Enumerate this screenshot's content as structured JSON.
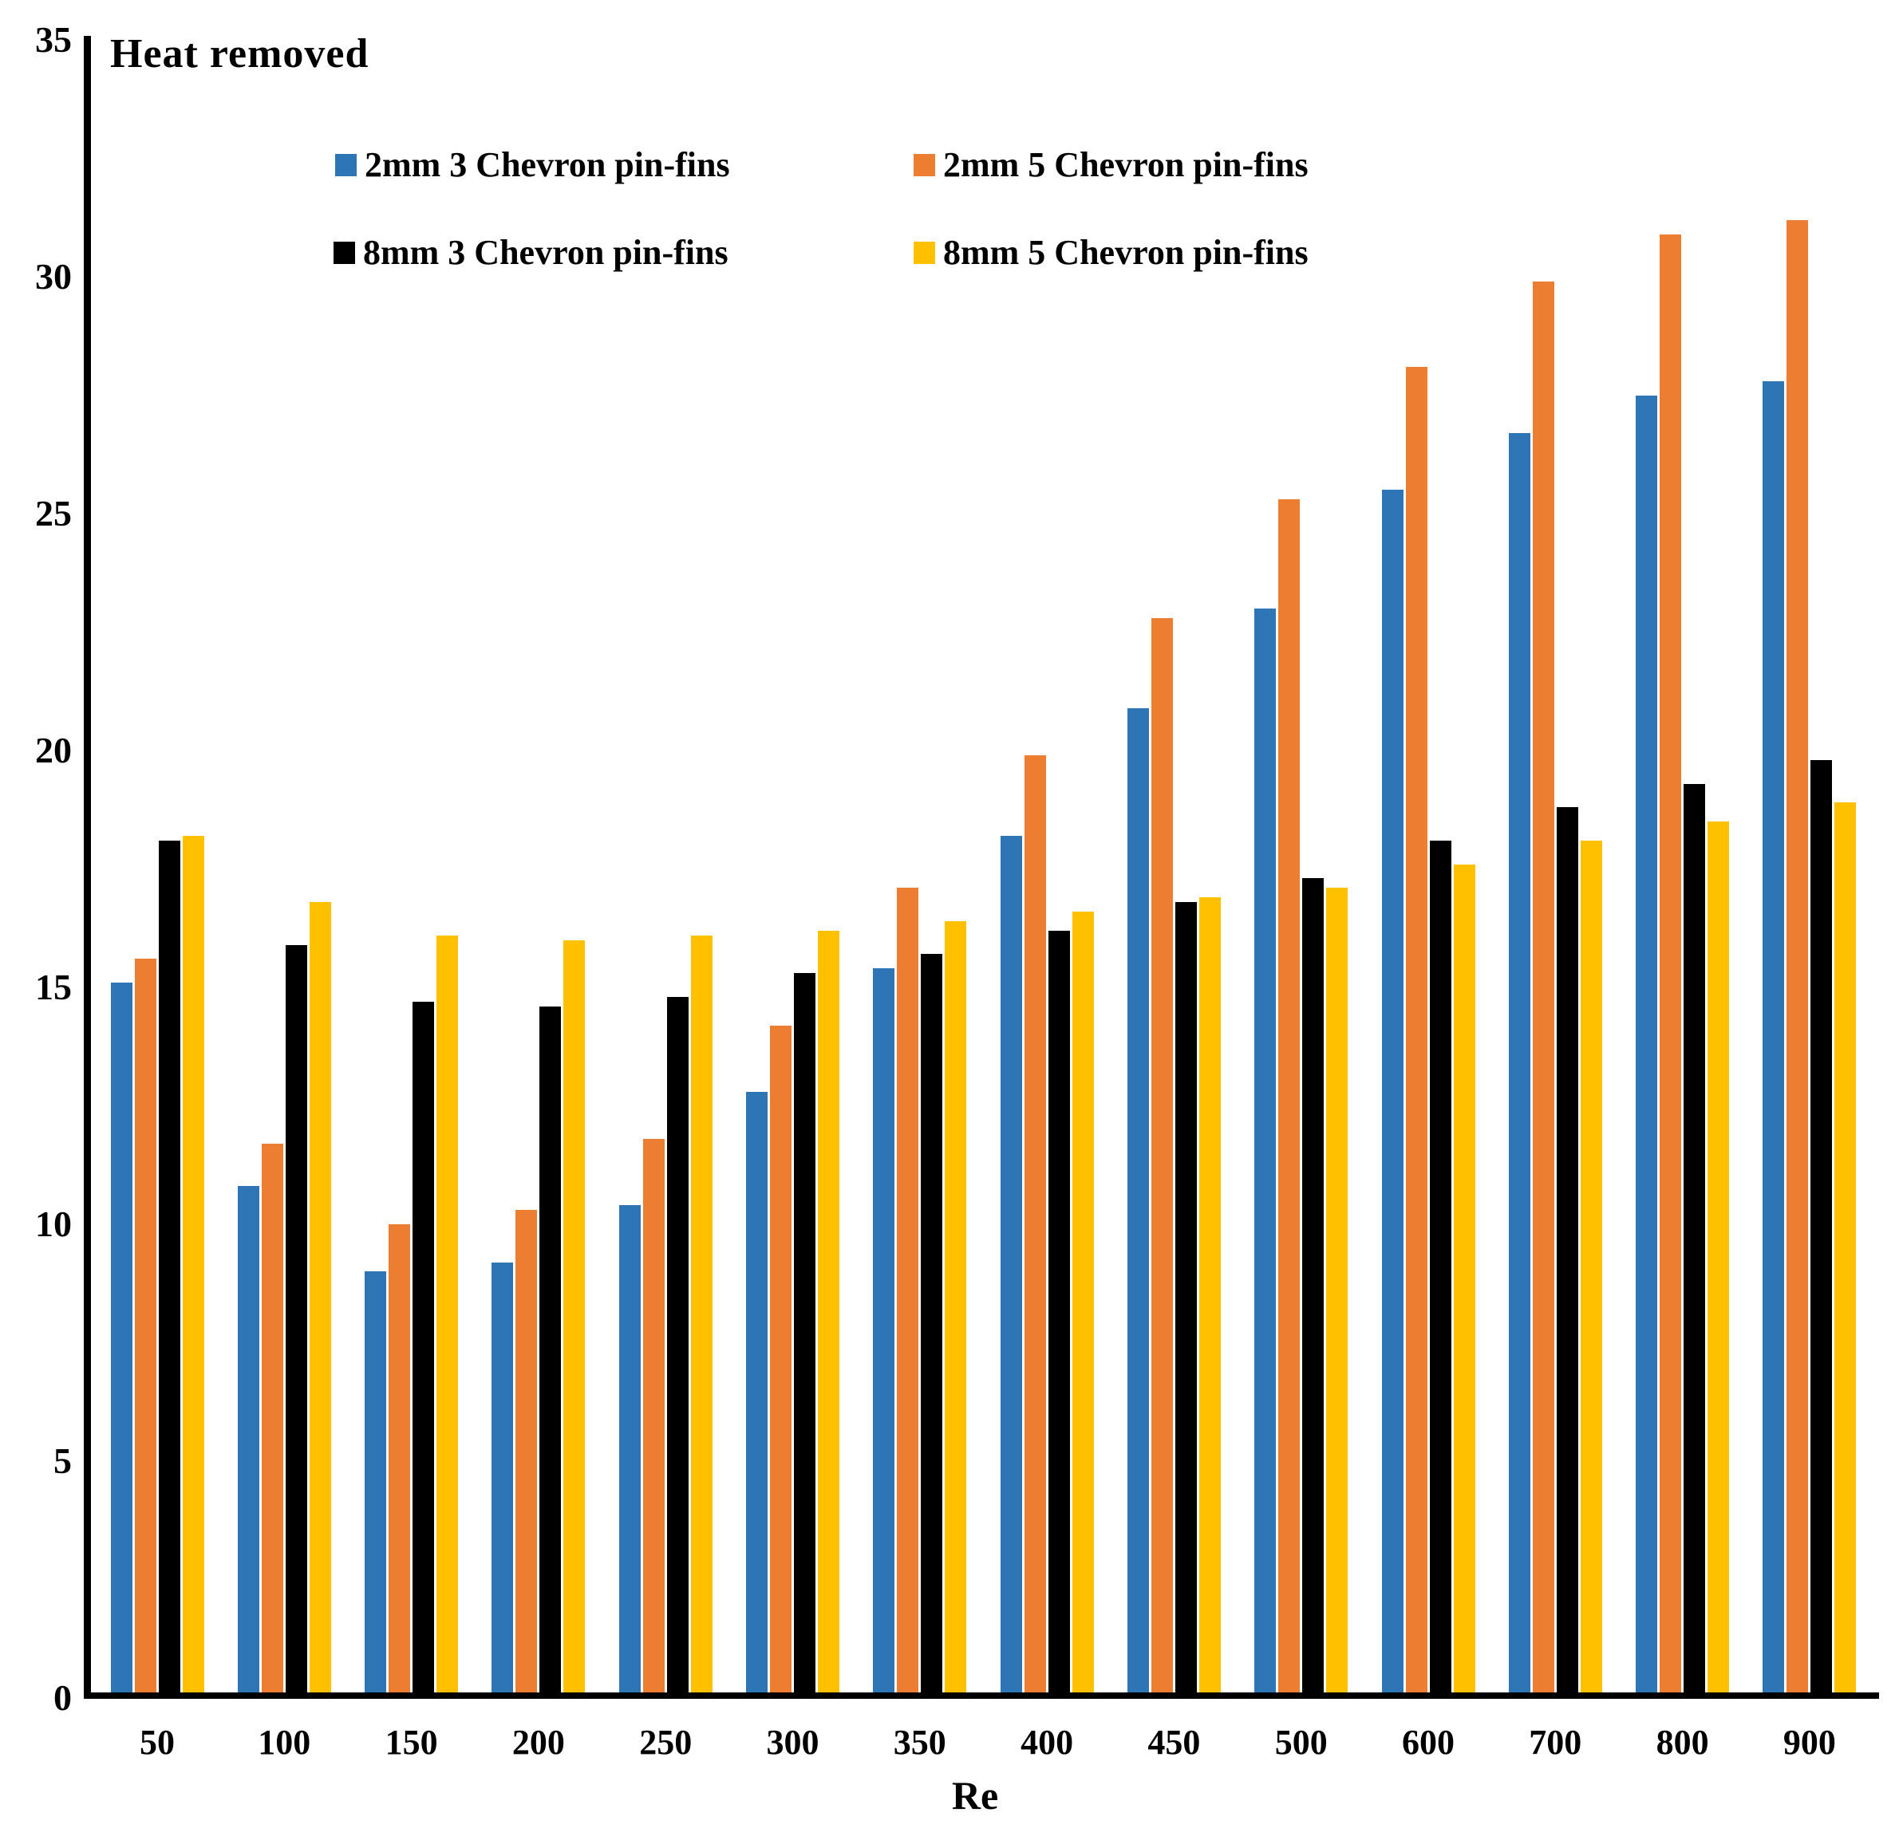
{
  "chart_data": {
    "type": "bar",
    "title": "Heat removed",
    "xlabel": "Re",
    "ylabel": "",
    "ylim": [
      0,
      35
    ],
    "yticks": [
      0,
      5,
      10,
      15,
      20,
      25,
      30,
      35
    ],
    "grid": false,
    "legend_position": "top-left-inside-2x2",
    "categories": [
      "50",
      "100",
      "150",
      "200",
      "250",
      "300",
      "350",
      "400",
      "450",
      "500",
      "600",
      "700",
      "800",
      "900"
    ],
    "series": [
      {
        "name": "2mm 3 Chevron pin-fins",
        "color": "#2E75B6",
        "values": [
          15.1,
          10.8,
          9.0,
          9.2,
          10.4,
          12.8,
          15.4,
          18.2,
          20.9,
          23.0,
          25.5,
          26.7,
          27.5,
          27.8
        ]
      },
      {
        "name": "2mm 5 Chevron pin-fins",
        "color": "#ED7D31",
        "values": [
          15.6,
          11.7,
          10.0,
          10.3,
          11.8,
          14.2,
          17.1,
          19.9,
          22.8,
          25.3,
          28.1,
          29.9,
          30.9,
          31.2
        ]
      },
      {
        "name": "8mm 3 Chevron pin-fins",
        "color": "#000000",
        "values": [
          18.1,
          15.9,
          14.7,
          14.6,
          14.8,
          15.3,
          15.7,
          16.2,
          16.8,
          17.3,
          18.1,
          18.8,
          19.3,
          19.8
        ]
      },
      {
        "name": "8mm 5 Chevron pin-fins",
        "color": "#FFC000",
        "values": [
          18.2,
          16.8,
          16.1,
          16.0,
          16.1,
          16.2,
          16.4,
          16.6,
          16.9,
          17.1,
          17.6,
          18.1,
          18.5,
          18.9
        ]
      }
    ]
  }
}
